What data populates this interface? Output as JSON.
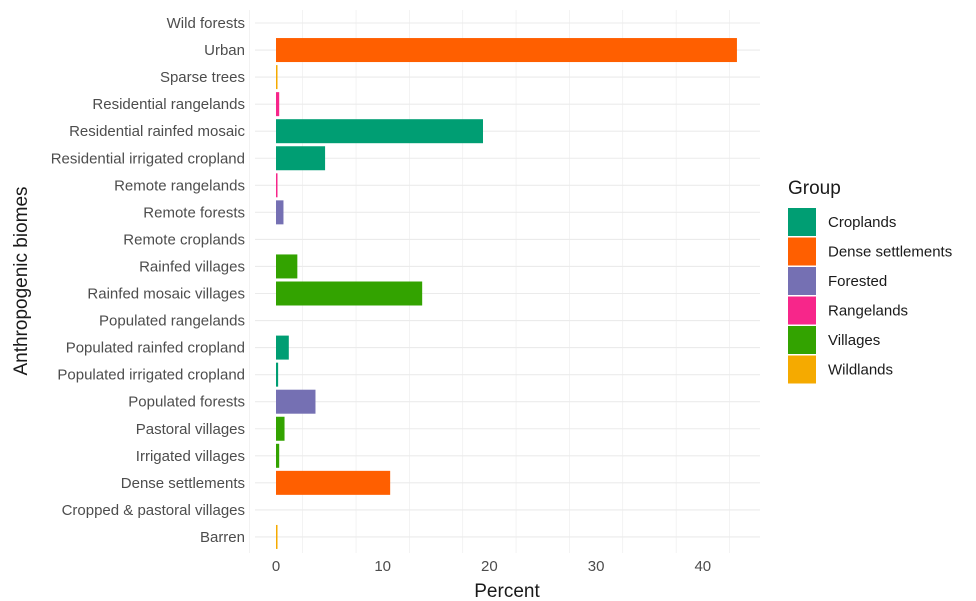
{
  "chart_data": {
    "type": "bar",
    "orientation": "horizontal",
    "xlabel": "Percent",
    "ylabel": "Anthropogenic biomes",
    "xlim": [
      0,
      45
    ],
    "xticks": [
      0,
      10,
      20,
      30,
      40
    ],
    "grid": true,
    "legend": {
      "title": "Group",
      "position": "right",
      "entries": [
        {
          "name": "Croplands",
          "color": "#009E73"
        },
        {
          "name": "Dense settlements",
          "color": "#FF5F00"
        },
        {
          "name": "Forested",
          "color": "#7570B3"
        },
        {
          "name": "Rangelands",
          "color": "#F7268A"
        },
        {
          "name": "Villages",
          "color": "#33A300"
        },
        {
          "name": "Wildlands",
          "color": "#F5AA00"
        }
      ]
    },
    "categories": [
      "Wild forests",
      "Urban",
      "Sparse trees",
      "Residential rangelands",
      "Residential rainfed mosaic",
      "Residential irrigated cropland",
      "Remote rangelands",
      "Remote forests",
      "Remote croplands",
      "Rainfed villages",
      "Rainfed mosaic villages",
      "Populated rangelands",
      "Populated rainfed cropland",
      "Populated irrigated cropland",
      "Populated forests",
      "Pastoral villages",
      "Irrigated villages",
      "Dense settlements",
      "Cropped & pastoral villages",
      "Barren"
    ],
    "values": [
      0.0,
      43.2,
      0.1,
      0.3,
      19.4,
      4.6,
      0.1,
      0.7,
      0.0,
      2.0,
      13.7,
      0.0,
      1.2,
      0.2,
      3.7,
      0.8,
      0.3,
      10.7,
      0.0,
      0.1
    ],
    "groups": [
      "Wildlands",
      "Dense settlements",
      "Wildlands",
      "Rangelands",
      "Croplands",
      "Croplands",
      "Rangelands",
      "Forested",
      "Croplands",
      "Villages",
      "Villages",
      "Rangelands",
      "Croplands",
      "Croplands",
      "Forested",
      "Villages",
      "Villages",
      "Dense settlements",
      "Villages",
      "Wildlands"
    ]
  }
}
